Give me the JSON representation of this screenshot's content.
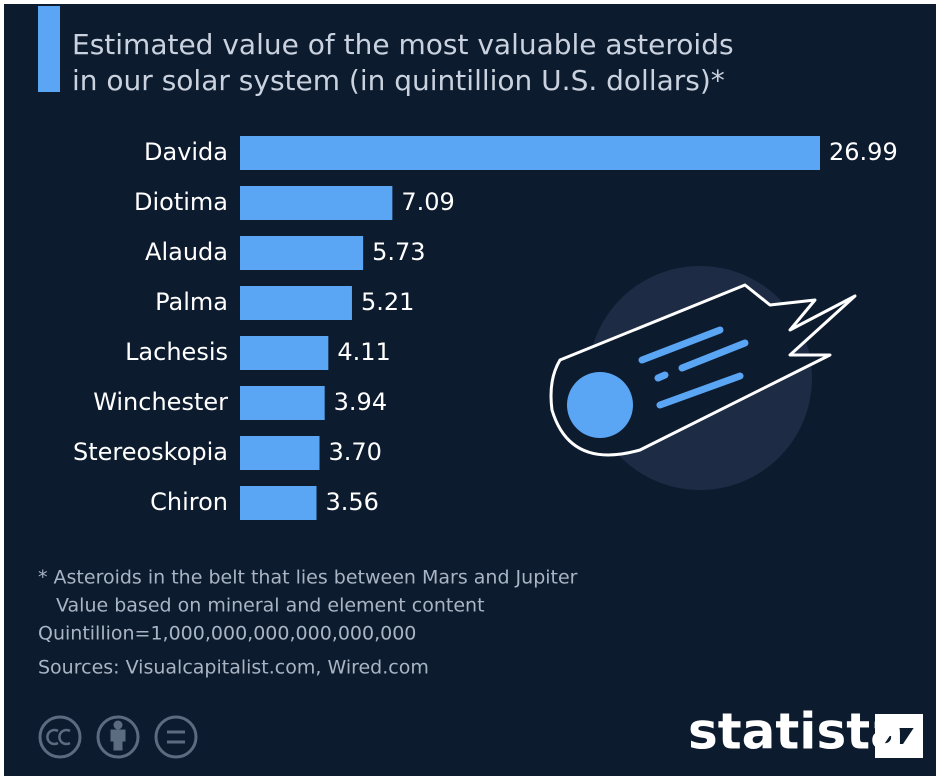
{
  "chart_data": {
    "type": "bar",
    "orientation": "horizontal",
    "title": [
      "Estimated value of the most valuable asteroids",
      "in our solar system (in quintillion U.S. dollars)*"
    ],
    "categories": [
      "Davida",
      "Diotima",
      "Alauda",
      "Palma",
      "Lachesis",
      "Winchester",
      "Stereoskopia",
      "Chiron"
    ],
    "values": [
      26.99,
      7.09,
      5.73,
      5.21,
      4.11,
      3.94,
      3.7,
      3.56
    ],
    "value_labels": [
      "26.99",
      "7.09",
      "5.73",
      "5.21",
      "4.11",
      "3.94",
      "3.70",
      "3.56"
    ],
    "color": "#5aa6f4",
    "notes": [
      "* Asteroids in the belt that lies between Mars and Jupiter",
      "Value based on mineral and element content",
      "Quintillion=1,000,000,000,000,000,000",
      "Sources: Visualcapitalist.com, Wired.com"
    ],
    "logo": "statista"
  }
}
